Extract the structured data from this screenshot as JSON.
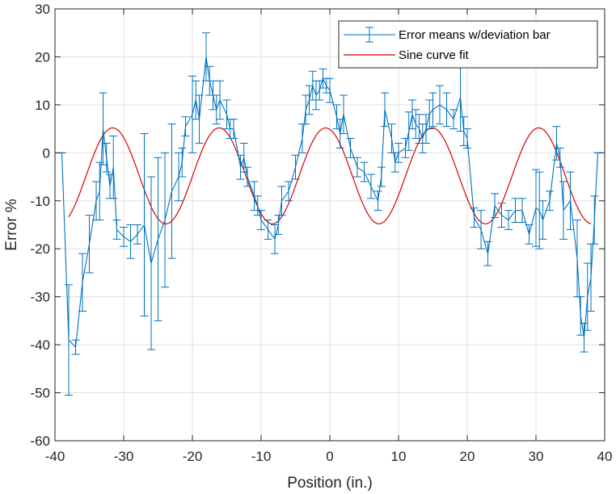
{
  "chart_data": {
    "type": "line",
    "title": "",
    "xlabel": "Position (in.)",
    "ylabel": "Error %",
    "xlim": [
      -40,
      40
    ],
    "ylim": [
      -60,
      30
    ],
    "xticks": [
      -40,
      -30,
      -20,
      -10,
      0,
      10,
      20,
      30,
      40
    ],
    "yticks": [
      -60,
      -50,
      -40,
      -30,
      -20,
      -10,
      0,
      10,
      20,
      30
    ],
    "grid": true,
    "legend_position": "top-right",
    "colors": {
      "error_series": "#0072BD",
      "fit_series": "#D90000",
      "grid": "#e0e0e0",
      "axis": "#262626"
    },
    "series": [
      {
        "name": "Error means w/deviation bar",
        "style": "line-with-errorbars",
        "points": [
          {
            "x": -39.0,
            "y": 0,
            "err": 0
          },
          {
            "x": -38.0,
            "y": -39,
            "err": 11.5
          },
          {
            "x": -37.0,
            "y": -40.5,
            "err": 1.5
          },
          {
            "x": -36.0,
            "y": -27,
            "err": 6
          },
          {
            "x": -35.0,
            "y": -19,
            "err": 6
          },
          {
            "x": -34.0,
            "y": -10,
            "err": 4
          },
          {
            "x": -33.5,
            "y": -8,
            "err": 6
          },
          {
            "x": -33.0,
            "y": 5,
            "err": 7.5
          },
          {
            "x": -32.5,
            "y": -1,
            "err": 3
          },
          {
            "x": -32.0,
            "y": -7,
            "err": 2.5
          },
          {
            "x": -31.5,
            "y": -3,
            "err": 6.5
          },
          {
            "x": -31.0,
            "y": -16,
            "err": 2
          },
          {
            "x": -30.0,
            "y": -17.5,
            "err": 2
          },
          {
            "x": -29.0,
            "y": -18.5,
            "err": 3.5
          },
          {
            "x": -28.0,
            "y": -17,
            "err": 2
          },
          {
            "x": -27.0,
            "y": -15,
            "err": 19
          },
          {
            "x": -26.0,
            "y": -23,
            "err": 18
          },
          {
            "x": -25.0,
            "y": -18,
            "err": 17
          },
          {
            "x": -24.0,
            "y": -14,
            "err": 14
          },
          {
            "x": -23.0,
            "y": -8,
            "err": 14
          },
          {
            "x": -22.0,
            "y": -5,
            "err": 5
          },
          {
            "x": -21.5,
            "y": -2,
            "err": 3
          },
          {
            "x": -21.0,
            "y": 5.5,
            "err": 2
          },
          {
            "x": -20.0,
            "y": 8,
            "err": 8
          },
          {
            "x": -19.5,
            "y": 11,
            "err": 4
          },
          {
            "x": -19.0,
            "y": 7,
            "err": 5
          },
          {
            "x": -18.0,
            "y": 20,
            "err": 5
          },
          {
            "x": -17.5,
            "y": 15,
            "err": 3
          },
          {
            "x": -17.0,
            "y": 12,
            "err": 3
          },
          {
            "x": -16.5,
            "y": 9,
            "err": 3
          },
          {
            "x": -16.0,
            "y": 11,
            "err": 4
          },
          {
            "x": -15.0,
            "y": 8,
            "err": 3
          },
          {
            "x": -14.5,
            "y": 5,
            "err": 2
          },
          {
            "x": -14.0,
            "y": 5,
            "err": 2
          },
          {
            "x": -13.0,
            "y": -3,
            "err": 2.5
          },
          {
            "x": -12.5,
            "y": -1,
            "err": 3
          },
          {
            "x": -12.0,
            "y": -5,
            "err": 2
          },
          {
            "x": -11.0,
            "y": -9,
            "err": 3
          },
          {
            "x": -10.5,
            "y": -11,
            "err": 2
          },
          {
            "x": -10.0,
            "y": -14,
            "err": 2
          },
          {
            "x": -9.0,
            "y": -16,
            "err": 2
          },
          {
            "x": -8.0,
            "y": -18,
            "err": 3
          },
          {
            "x": -7.5,
            "y": -15,
            "err": 2
          },
          {
            "x": -7.0,
            "y": -10,
            "err": 3
          },
          {
            "x": -6.0,
            "y": -8,
            "err": 2
          },
          {
            "x": -5.0,
            "y": -3,
            "err": 2.5
          },
          {
            "x": -4.0,
            "y": 3,
            "err": 3
          },
          {
            "x": -3.5,
            "y": 9,
            "err": 3
          },
          {
            "x": -3.0,
            "y": 11,
            "err": 3
          },
          {
            "x": -2.5,
            "y": 14,
            "err": 3
          },
          {
            "x": -2.0,
            "y": 12,
            "err": 3
          },
          {
            "x": -1.5,
            "y": 13,
            "err": 2
          },
          {
            "x": -1.0,
            "y": 15.5,
            "err": 2
          },
          {
            "x": -0.5,
            "y": 14,
            "err": 1.5
          },
          {
            "x": 0.0,
            "y": 13,
            "err": 2.5
          },
          {
            "x": 1.0,
            "y": 7.5,
            "err": 2.5
          },
          {
            "x": 1.5,
            "y": 4,
            "err": 3
          },
          {
            "x": 2.0,
            "y": 8,
            "err": 4
          },
          {
            "x": 3.0,
            "y": 1,
            "err": 2
          },
          {
            "x": 4.0,
            "y": -3,
            "err": 2
          },
          {
            "x": 5.0,
            "y": -4,
            "err": 2
          },
          {
            "x": 6.0,
            "y": -7,
            "err": 2.5
          },
          {
            "x": 7.0,
            "y": -10,
            "err": 2
          },
          {
            "x": 7.5,
            "y": -5,
            "err": 2
          },
          {
            "x": 8.0,
            "y": 9,
            "err": 3.5
          },
          {
            "x": 9.0,
            "y": 3,
            "err": 3
          },
          {
            "x": 9.5,
            "y": -2,
            "err": 2
          },
          {
            "x": 10.0,
            "y": 0,
            "err": 2
          },
          {
            "x": 11.0,
            "y": 1,
            "err": 2
          },
          {
            "x": 11.5,
            "y": 4.5,
            "err": 4
          },
          {
            "x": 12.0,
            "y": 8,
            "err": 3
          },
          {
            "x": 12.5,
            "y": 6,
            "err": 3
          },
          {
            "x": 13.0,
            "y": 5,
            "err": 3
          },
          {
            "x": 13.5,
            "y": 3,
            "err": 3
          },
          {
            "x": 14.0,
            "y": 5,
            "err": 3
          },
          {
            "x": 14.5,
            "y": 8,
            "err": 3
          },
          {
            "x": 15.0,
            "y": 9,
            "err": 3.5
          },
          {
            "x": 16.0,
            "y": 10,
            "err": 4
          },
          {
            "x": 17.0,
            "y": 9,
            "err": 3.5
          },
          {
            "x": 18.0,
            "y": 7,
            "err": 2
          },
          {
            "x": 19.0,
            "y": 11.5,
            "err": 7
          },
          {
            "x": 19.5,
            "y": 4.5,
            "err": 3
          },
          {
            "x": 20.0,
            "y": 3,
            "err": 2
          },
          {
            "x": 21.0,
            "y": -13.5,
            "err": 2
          },
          {
            "x": 22.0,
            "y": -16,
            "err": 4
          },
          {
            "x": 23.0,
            "y": -21,
            "err": 2.5
          },
          {
            "x": 24.0,
            "y": -11,
            "err": 2.5
          },
          {
            "x": 25.0,
            "y": -13,
            "err": 2.5
          },
          {
            "x": 26.0,
            "y": -14,
            "err": 2
          },
          {
            "x": 27.0,
            "y": -12,
            "err": 2.5
          },
          {
            "x": 28.0,
            "y": -12,
            "err": 2.5
          },
          {
            "x": 29.0,
            "y": -17,
            "err": 2
          },
          {
            "x": 30.0,
            "y": -11.5,
            "err": 8
          },
          {
            "x": 30.5,
            "y": -12,
            "err": 8
          },
          {
            "x": 31.0,
            "y": -14,
            "err": 4
          },
          {
            "x": 32.0,
            "y": -10,
            "err": 2
          },
          {
            "x": 33.0,
            "y": 2,
            "err": 3.5
          },
          {
            "x": 33.5,
            "y": -1,
            "err": 2
          },
          {
            "x": 34.0,
            "y": -12,
            "err": 6
          },
          {
            "x": 35.0,
            "y": -10,
            "err": 6
          },
          {
            "x": 36.0,
            "y": -22,
            "err": 8
          },
          {
            "x": 36.5,
            "y": -34,
            "err": 4
          },
          {
            "x": 37.0,
            "y": -38.5,
            "err": 3
          },
          {
            "x": 37.5,
            "y": -30,
            "err": 7
          },
          {
            "x": 38.0,
            "y": -26,
            "err": 7
          },
          {
            "x": 38.5,
            "y": -14,
            "err": 5
          },
          {
            "x": 39.0,
            "y": 0,
            "err": 0
          }
        ]
      },
      {
        "name": "Sine curve fit",
        "style": "line",
        "function": {
          "kind": "sine",
          "amplitude": 10,
          "offset": -4.8,
          "period": 15.5,
          "phase_peak_x": -0.6
        },
        "x_range": [
          -38,
          38
        ]
      }
    ]
  }
}
